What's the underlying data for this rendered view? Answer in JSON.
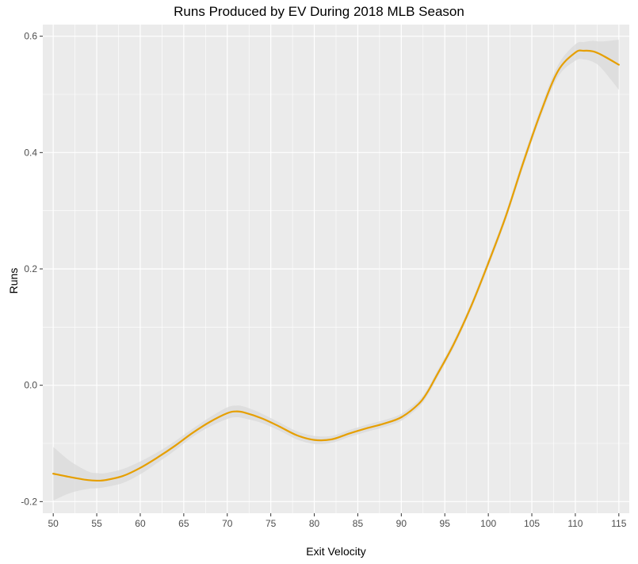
{
  "chart_data": {
    "type": "line",
    "title": "Runs Produced by EV During 2018 MLB Season",
    "xlabel": "Exit Velocity",
    "ylabel": "Runs",
    "xlim": [
      48.8,
      116.2
    ],
    "ylim": [
      -0.22,
      0.62
    ],
    "x_ticks": [
      50,
      55,
      60,
      65,
      70,
      75,
      80,
      85,
      90,
      95,
      100,
      105,
      110,
      115
    ],
    "x_tick_labels": [
      "50",
      "55",
      "60",
      "65",
      "70",
      "75",
      "80",
      "85",
      "90",
      "95",
      "100",
      "105",
      "110",
      "115"
    ],
    "y_ticks": [
      -0.2,
      0.0,
      0.2,
      0.4,
      0.6
    ],
    "y_tick_labels": [
      "-0.2",
      "0.0",
      "0.2",
      "0.4",
      "0.6"
    ],
    "grid": true,
    "legend": "none",
    "colors": {
      "line": "#E69F00",
      "ribbon": "#d9d9d9",
      "panel": "#ebebeb",
      "grid": "#ffffff"
    },
    "series": [
      {
        "x": [
          50,
          52,
          54,
          55,
          56,
          58,
          60,
          62,
          64,
          66,
          68,
          70,
          71,
          72,
          74,
          76,
          78,
          80,
          82,
          84,
          86,
          88,
          90,
          92,
          93,
          94,
          96,
          98,
          100,
          102,
          104,
          106,
          108,
          110,
          111,
          112,
          113,
          115
        ],
        "y": [
          -0.152,
          -0.158,
          -0.163,
          -0.164,
          -0.163,
          -0.156,
          -0.142,
          -0.124,
          -0.104,
          -0.082,
          -0.063,
          -0.048,
          -0.045,
          -0.047,
          -0.057,
          -0.071,
          -0.086,
          -0.094,
          -0.093,
          -0.083,
          -0.074,
          -0.066,
          -0.055,
          -0.032,
          -0.012,
          0.015,
          0.07,
          0.135,
          0.21,
          0.29,
          0.382,
          0.468,
          0.54,
          0.572,
          0.575,
          0.574,
          0.568,
          0.551
        ],
        "ci_lower": [
          -0.198,
          -0.185,
          -0.178,
          -0.177,
          -0.175,
          -0.168,
          -0.153,
          -0.133,
          -0.112,
          -0.089,
          -0.071,
          -0.058,
          -0.055,
          -0.057,
          -0.065,
          -0.078,
          -0.093,
          -0.101,
          -0.099,
          -0.089,
          -0.08,
          -0.072,
          -0.061,
          -0.038,
          -0.018,
          0.009,
          0.064,
          0.129,
          0.203,
          0.283,
          0.374,
          0.46,
          0.53,
          0.558,
          0.56,
          0.556,
          0.545,
          0.508
        ],
        "ci_upper": [
          -0.106,
          -0.131,
          -0.148,
          -0.151,
          -0.151,
          -0.144,
          -0.131,
          -0.115,
          -0.096,
          -0.075,
          -0.055,
          -0.038,
          -0.035,
          -0.037,
          -0.049,
          -0.064,
          -0.079,
          -0.087,
          -0.087,
          -0.077,
          -0.068,
          -0.06,
          -0.049,
          -0.026,
          -0.006,
          0.021,
          0.076,
          0.141,
          0.217,
          0.297,
          0.39,
          0.476,
          0.55,
          0.586,
          0.59,
          0.592,
          0.591,
          0.594
        ]
      }
    ]
  }
}
